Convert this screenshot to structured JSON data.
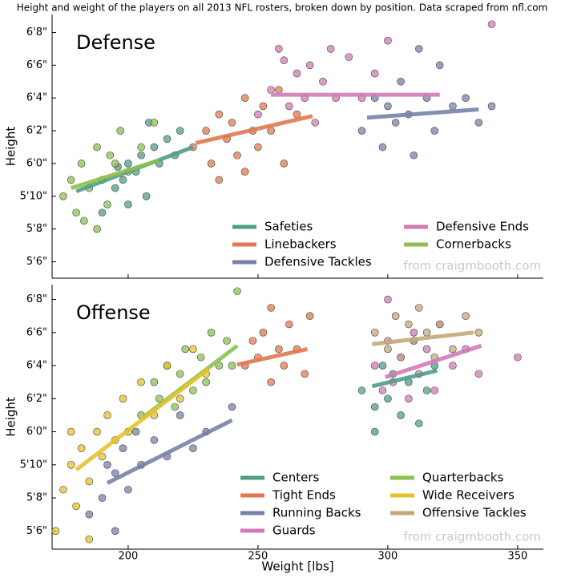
{
  "title": "Height and weight of the players on all 2013 NFL rosters, broken down by position.  Data scraped from nfl.com",
  "chart_data": [
    {
      "type": "scatter",
      "title": "Defense",
      "ylabel": "Height",
      "watermark": "from craigmbooth.com",
      "xlim": [
        170.7,
        359.9
      ],
      "ylim": [
        65,
        81.1
      ],
      "xticks": [
        200,
        250,
        300,
        350
      ],
      "show_xtick_labels": false,
      "yticks": [
        {
          "value": 66,
          "label": "5'6\""
        },
        {
          "value": 68,
          "label": "5'8\""
        },
        {
          "value": 70,
          "label": "5'10\""
        },
        {
          "value": 72,
          "label": "6'0\""
        },
        {
          "value": 74,
          "label": "6'2\""
        },
        {
          "value": 76,
          "label": "6'4\""
        },
        {
          "value": 78,
          "label": "6'6\""
        },
        {
          "value": 80,
          "label": "6'8\""
        }
      ],
      "legend": "lower right",
      "legend_columns": 2,
      "series": [
        {
          "name": "Safeties",
          "color": "#4f9d88",
          "x": [
            190,
            195,
            198,
            200,
            203,
            205,
            207,
            210,
            212,
            215,
            218,
            220,
            200,
            208,
            196
          ],
          "values": [
            69,
            70.5,
            71,
            72,
            71.5,
            72.5,
            70,
            73,
            72,
            73.5,
            72.5,
            74,
            69.5,
            74.5,
            71.8
          ],
          "fit_x": [
            180,
            225
          ],
          "fit_y": [
            70.3,
            73.0
          ]
        },
        {
          "name": "Linebackers",
          "color": "#e0794f",
          "x": [
            225,
            230,
            232,
            235,
            238,
            240,
            242,
            245,
            248,
            250,
            252,
            255,
            258,
            260,
            245,
            235,
            265
          ],
          "values": [
            73,
            74,
            72,
            75,
            73.5,
            74.5,
            72.5,
            76,
            74,
            73,
            75.5,
            74,
            76.5,
            72,
            71.5,
            71,
            75
          ],
          "fit_x": [
            226,
            271
          ],
          "fit_y": [
            73.25,
            74.9
          ]
        },
        {
          "name": "Defensive Tackles",
          "color": "#7582a8",
          "x": [
            290,
            295,
            298,
            300,
            303,
            305,
            308,
            310,
            315,
            318,
            320,
            325,
            330,
            335,
            340,
            312
          ],
          "values": [
            74,
            76,
            73,
            75.5,
            74.5,
            77,
            75,
            72.5,
            76,
            74,
            78,
            75.5,
            76,
            74.5,
            75.5,
            79
          ],
          "fit_x": [
            292,
            335
          ],
          "fit_y": [
            74.8,
            75.3
          ]
        },
        {
          "name": "Defensive Ends",
          "color": "#d27bb6",
          "x": [
            250,
            255,
            258,
            262,
            265,
            268,
            270,
            272,
            275,
            278,
            280,
            285,
            290,
            295,
            260,
            300,
            340
          ],
          "values": [
            75,
            76.5,
            79,
            75.5,
            77.5,
            76,
            78,
            74.5,
            77,
            79,
            76,
            78.5,
            76,
            77.5,
            78.3,
            79.5,
            80.5
          ],
          "fit_x": [
            255,
            320
          ],
          "fit_y": [
            76.2,
            76.2
          ]
        },
        {
          "name": "Cornerbacks",
          "color": "#8cc04f",
          "x": [
            175,
            178,
            180,
            182,
            185,
            188,
            190,
            192,
            195,
            197,
            200,
            205,
            188,
            183,
            193,
            210
          ],
          "values": [
            70,
            71,
            69,
            72,
            70.5,
            73,
            71,
            69.5,
            72,
            74,
            71.5,
            73,
            68,
            68.5,
            72.5,
            74.5
          ],
          "fit_x": [
            178,
            212
          ],
          "fit_y": [
            70.5,
            72.2
          ]
        }
      ]
    },
    {
      "type": "scatter",
      "title": "Offense",
      "ylabel": "Height",
      "xlabel": "Weight [lbs]",
      "watermark": "from craigmbooth.com",
      "xlim": [
        170.7,
        359.9
      ],
      "ylim": [
        64.9,
        80.9
      ],
      "xticks": [
        200,
        250,
        300,
        350
      ],
      "show_xtick_labels": true,
      "yticks": [
        {
          "value": 66,
          "label": "5'6\""
        },
        {
          "value": 68,
          "label": "5'8\""
        },
        {
          "value": 70,
          "label": "5'10\""
        },
        {
          "value": 72,
          "label": "6'0\""
        },
        {
          "value": 74,
          "label": "6'2\""
        },
        {
          "value": 76,
          "label": "6'4\""
        },
        {
          "value": 78,
          "label": "6'6\""
        },
        {
          "value": 80,
          "label": "6'8\""
        }
      ],
      "legend": "lower right",
      "legend_columns": 2,
      "series": [
        {
          "name": "Centers",
          "color": "#4f9d88",
          "x": [
            290,
            295,
            298,
            300,
            302,
            305,
            308,
            310,
            312,
            315,
            318,
            295
          ],
          "values": [
            74.5,
            73.5,
            76,
            74,
            75.5,
            73,
            75,
            77.5,
            72.5,
            74.5,
            76,
            72
          ],
          "fit_x": [
            294,
            319
          ],
          "fit_y": [
            74.75,
            75.7
          ]
        },
        {
          "name": "Tight Ends",
          "color": "#e0794f",
          "x": [
            245,
            248,
            250,
            252,
            255,
            258,
            260,
            262,
            265,
            268,
            270,
            255
          ],
          "values": [
            76,
            77.5,
            76.5,
            78,
            75,
            77,
            76,
            78.5,
            77,
            75.5,
            79,
            79.5
          ],
          "fit_x": [
            242,
            269
          ],
          "fit_y": [
            76.06,
            77.0
          ]
        },
        {
          "name": "Running Backs",
          "color": "#7582a8",
          "x": [
            185,
            190,
            192,
            195,
            198,
            200,
            203,
            205,
            210,
            215,
            220,
            225,
            230,
            240,
            195
          ],
          "values": [
            67,
            68,
            70,
            69.5,
            71,
            68.5,
            72,
            70,
            71.5,
            70.5,
            73,
            71,
            72,
            73.5,
            66
          ],
          "fit_x": [
            192,
            240
          ],
          "fit_y": [
            68.9,
            72.7
          ]
        },
        {
          "name": "Guards",
          "color": "#d27bb6",
          "x": [
            295,
            298,
            300,
            302,
            305,
            308,
            310,
            312,
            315,
            318,
            320,
            325,
            330,
            335,
            350,
            300
          ],
          "values": [
            76,
            74.5,
            77.5,
            75,
            76.5,
            74,
            78,
            75.5,
            77,
            74.5,
            78.5,
            76,
            77,
            75.5,
            76.5,
            80
          ],
          "fit_x": [
            299,
            336
          ],
          "fit_y": [
            75.3,
            77.2
          ]
        },
        {
          "name": "Quarterbacks",
          "color": "#8cc04f",
          "x": [
            205,
            210,
            212,
            215,
            218,
            220,
            222,
            225,
            228,
            230,
            232,
            235,
            238,
            240,
            242
          ],
          "values": [
            73,
            75,
            74,
            76,
            73.5,
            75.5,
            77,
            74.5,
            76.5,
            75,
            78,
            76,
            77.5,
            76,
            80.5
          ],
          "fit_x": [
            206,
            242
          ],
          "fit_y": [
            72.9,
            77.2
          ]
        },
        {
          "name": "Wide Receivers",
          "color": "#e6c22c",
          "x": [
            172,
            175,
            178,
            180,
            182,
            185,
            188,
            190,
            192,
            195,
            198,
            200,
            205,
            210,
            215,
            220,
            225,
            230,
            178,
            185
          ],
          "values": [
            66,
            68.5,
            70,
            67.5,
            71,
            69,
            72,
            70.5,
            73,
            71.5,
            74,
            72,
            75,
            73,
            76,
            74,
            77,
            75.5,
            72,
            65.5
          ],
          "fit_x": [
            180,
            231
          ],
          "fit_y": [
            69.7,
            75.8
          ]
        },
        {
          "name": "Offensive Tackles",
          "color": "#c4a77a",
          "x": [
            295,
            300,
            303,
            305,
            308,
            310,
            312,
            315,
            318,
            320,
            325,
            330,
            335
          ],
          "values": [
            78,
            77,
            79,
            76.5,
            78.5,
            77.5,
            79.5,
            78,
            76.5,
            78.5,
            77,
            79,
            78
          ],
          "fit_x": [
            294,
            333
          ],
          "fit_y": [
            77.3,
            78.0
          ]
        }
      ]
    }
  ]
}
